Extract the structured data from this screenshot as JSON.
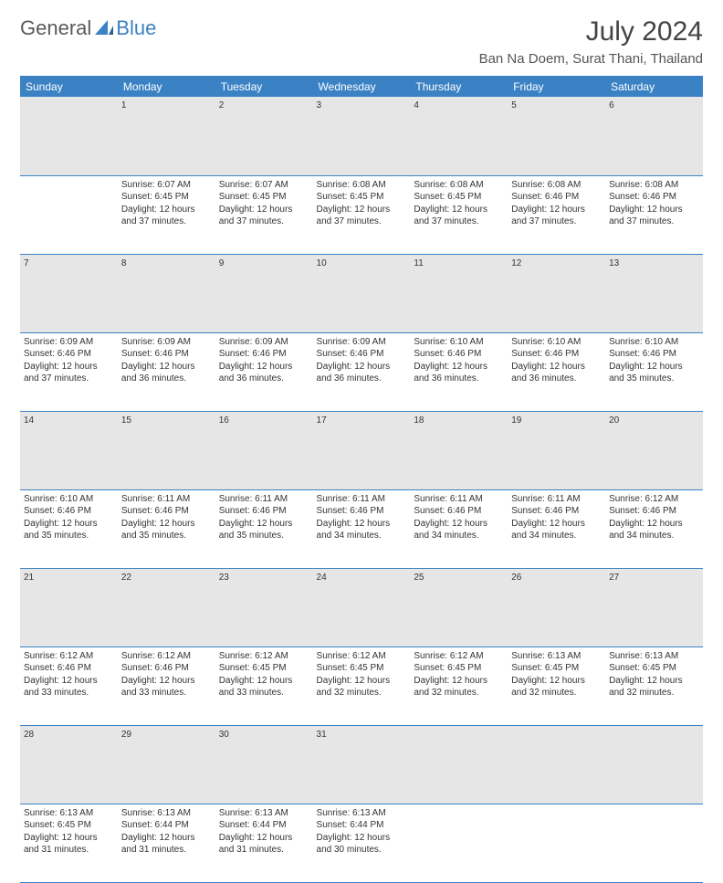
{
  "logo": {
    "text1": "General",
    "text2": "Blue"
  },
  "title": "July 2024",
  "location": "Ban Na Doem, Surat Thani, Thailand",
  "colors": {
    "header_bg": "#3b82c4",
    "header_text": "#ffffff",
    "daynum_bg": "#e6e6e6",
    "border": "#3b82c4",
    "body_text": "#333333"
  },
  "days_of_week": [
    "Sunday",
    "Monday",
    "Tuesday",
    "Wednesday",
    "Thursday",
    "Friday",
    "Saturday"
  ],
  "weeks": [
    {
      "nums": [
        "",
        "1",
        "2",
        "3",
        "4",
        "5",
        "6"
      ],
      "cells": [
        null,
        {
          "sunrise": "6:07 AM",
          "sunset": "6:45 PM",
          "daylight": "12 hours and 37 minutes."
        },
        {
          "sunrise": "6:07 AM",
          "sunset": "6:45 PM",
          "daylight": "12 hours and 37 minutes."
        },
        {
          "sunrise": "6:08 AM",
          "sunset": "6:45 PM",
          "daylight": "12 hours and 37 minutes."
        },
        {
          "sunrise": "6:08 AM",
          "sunset": "6:45 PM",
          "daylight": "12 hours and 37 minutes."
        },
        {
          "sunrise": "6:08 AM",
          "sunset": "6:46 PM",
          "daylight": "12 hours and 37 minutes."
        },
        {
          "sunrise": "6:08 AM",
          "sunset": "6:46 PM",
          "daylight": "12 hours and 37 minutes."
        }
      ]
    },
    {
      "nums": [
        "7",
        "8",
        "9",
        "10",
        "11",
        "12",
        "13"
      ],
      "cells": [
        {
          "sunrise": "6:09 AM",
          "sunset": "6:46 PM",
          "daylight": "12 hours and 37 minutes."
        },
        {
          "sunrise": "6:09 AM",
          "sunset": "6:46 PM",
          "daylight": "12 hours and 36 minutes."
        },
        {
          "sunrise": "6:09 AM",
          "sunset": "6:46 PM",
          "daylight": "12 hours and 36 minutes."
        },
        {
          "sunrise": "6:09 AM",
          "sunset": "6:46 PM",
          "daylight": "12 hours and 36 minutes."
        },
        {
          "sunrise": "6:10 AM",
          "sunset": "6:46 PM",
          "daylight": "12 hours and 36 minutes."
        },
        {
          "sunrise": "6:10 AM",
          "sunset": "6:46 PM",
          "daylight": "12 hours and 36 minutes."
        },
        {
          "sunrise": "6:10 AM",
          "sunset": "6:46 PM",
          "daylight": "12 hours and 35 minutes."
        }
      ]
    },
    {
      "nums": [
        "14",
        "15",
        "16",
        "17",
        "18",
        "19",
        "20"
      ],
      "cells": [
        {
          "sunrise": "6:10 AM",
          "sunset": "6:46 PM",
          "daylight": "12 hours and 35 minutes."
        },
        {
          "sunrise": "6:11 AM",
          "sunset": "6:46 PM",
          "daylight": "12 hours and 35 minutes."
        },
        {
          "sunrise": "6:11 AM",
          "sunset": "6:46 PM",
          "daylight": "12 hours and 35 minutes."
        },
        {
          "sunrise": "6:11 AM",
          "sunset": "6:46 PM",
          "daylight": "12 hours and 34 minutes."
        },
        {
          "sunrise": "6:11 AM",
          "sunset": "6:46 PM",
          "daylight": "12 hours and 34 minutes."
        },
        {
          "sunrise": "6:11 AM",
          "sunset": "6:46 PM",
          "daylight": "12 hours and 34 minutes."
        },
        {
          "sunrise": "6:12 AM",
          "sunset": "6:46 PM",
          "daylight": "12 hours and 34 minutes."
        }
      ]
    },
    {
      "nums": [
        "21",
        "22",
        "23",
        "24",
        "25",
        "26",
        "27"
      ],
      "cells": [
        {
          "sunrise": "6:12 AM",
          "sunset": "6:46 PM",
          "daylight": "12 hours and 33 minutes."
        },
        {
          "sunrise": "6:12 AM",
          "sunset": "6:46 PM",
          "daylight": "12 hours and 33 minutes."
        },
        {
          "sunrise": "6:12 AM",
          "sunset": "6:45 PM",
          "daylight": "12 hours and 33 minutes."
        },
        {
          "sunrise": "6:12 AM",
          "sunset": "6:45 PM",
          "daylight": "12 hours and 32 minutes."
        },
        {
          "sunrise": "6:12 AM",
          "sunset": "6:45 PM",
          "daylight": "12 hours and 32 minutes."
        },
        {
          "sunrise": "6:13 AM",
          "sunset": "6:45 PM",
          "daylight": "12 hours and 32 minutes."
        },
        {
          "sunrise": "6:13 AM",
          "sunset": "6:45 PM",
          "daylight": "12 hours and 32 minutes."
        }
      ]
    },
    {
      "nums": [
        "28",
        "29",
        "30",
        "31",
        "",
        "",
        ""
      ],
      "cells": [
        {
          "sunrise": "6:13 AM",
          "sunset": "6:45 PM",
          "daylight": "12 hours and 31 minutes."
        },
        {
          "sunrise": "6:13 AM",
          "sunset": "6:44 PM",
          "daylight": "12 hours and 31 minutes."
        },
        {
          "sunrise": "6:13 AM",
          "sunset": "6:44 PM",
          "daylight": "12 hours and 31 minutes."
        },
        {
          "sunrise": "6:13 AM",
          "sunset": "6:44 PM",
          "daylight": "12 hours and 30 minutes."
        },
        null,
        null,
        null
      ]
    }
  ],
  "labels": {
    "sunrise": "Sunrise:",
    "sunset": "Sunset:",
    "daylight": "Daylight:"
  }
}
